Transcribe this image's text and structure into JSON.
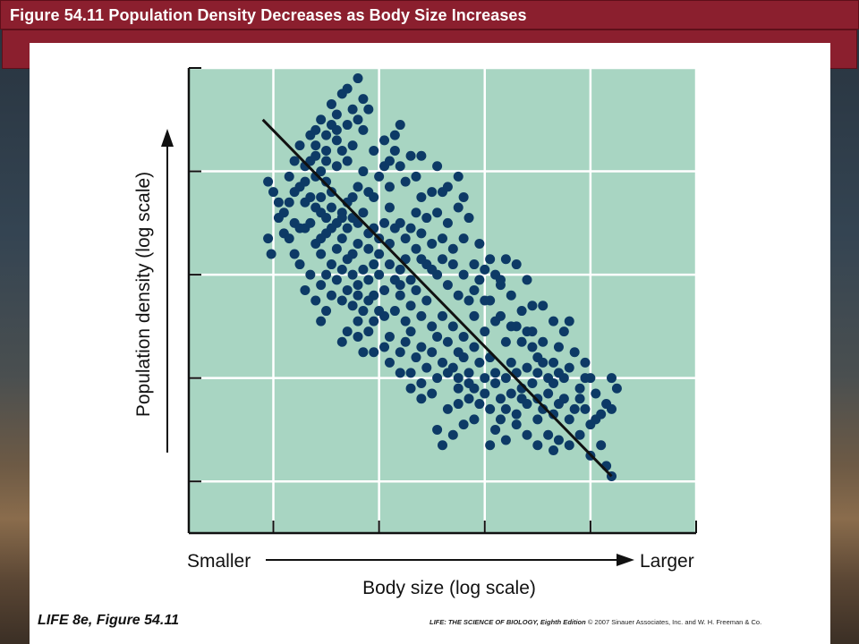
{
  "slide": {
    "title": "Figure 54.11 Population Density Decreases as Body Size Increases",
    "footer_left": "LIFE 8e, Figure 54.11",
    "footer_right_bold": "LIFE: THE SCIENCE OF BIOLOGY, Eighth Edition",
    "footer_right_rest": " © 2007 Sinauer Associates, Inc. and W. H. Freeman & Co."
  },
  "colors": {
    "title_bar": "#8b1f2e",
    "plot_background": "#a8d5c2",
    "point": "#0d3a66",
    "trend_line": "#111111"
  },
  "chart_data": {
    "type": "scatter",
    "title": "",
    "xlabel": "Body size (log scale)",
    "ylabel": "Population density (log scale)",
    "x_min_label": "Smaller",
    "x_max_label": "Larger",
    "log_x": true,
    "log_y": true,
    "xlim": [
      0,
      4.8
    ],
    "ylim": [
      0,
      4.5
    ],
    "grid": true,
    "grid_x": [
      0.8,
      1.8,
      2.8,
      3.8,
      4.8
    ],
    "grid_y": [
      0.5,
      1.5,
      2.5,
      3.5,
      4.5
    ],
    "trend_line": [
      [
        0.7,
        4.0
      ],
      [
        4.0,
        0.55
      ]
    ],
    "points": [
      [
        0.75,
        2.85
      ],
      [
        0.78,
        2.7
      ],
      [
        0.75,
        3.4
      ],
      [
        0.8,
        3.3
      ],
      [
        0.85,
        3.2
      ],
      [
        0.9,
        3.1
      ],
      [
        0.85,
        3.05
      ],
      [
        0.95,
        3.2
      ],
      [
        1.0,
        3.3
      ],
      [
        1.05,
        3.35
      ],
      [
        0.95,
        3.45
      ],
      [
        1.0,
        3.0
      ],
      [
        1.1,
        3.2
      ],
      [
        1.15,
        3.25
      ],
      [
        1.05,
        2.95
      ],
      [
        1.2,
        3.15
      ],
      [
        0.9,
        2.9
      ],
      [
        1.1,
        3.4
      ],
      [
        1.2,
        3.45
      ],
      [
        1.15,
        3.6
      ],
      [
        1.25,
        3.5
      ],
      [
        1.3,
        3.4
      ],
      [
        1.35,
        3.3
      ],
      [
        1.25,
        3.25
      ],
      [
        1.4,
        3.55
      ],
      [
        1.5,
        3.6
      ],
      [
        1.45,
        3.7
      ],
      [
        1.55,
        3.75
      ],
      [
        1.2,
        3.75
      ],
      [
        1.3,
        3.85
      ],
      [
        1.35,
        3.95
      ],
      [
        1.4,
        3.8
      ],
      [
        1.25,
        3.1
      ],
      [
        1.3,
        3.05
      ],
      [
        1.35,
        3.15
      ],
      [
        1.45,
        3.1
      ],
      [
        1.5,
        3.2
      ],
      [
        1.4,
        3.0
      ],
      [
        1.5,
        2.95
      ],
      [
        1.55,
        3.05
      ],
      [
        1.45,
        2.85
      ],
      [
        1.6,
        3.0
      ],
      [
        1.65,
        3.1
      ],
      [
        1.6,
        2.8
      ],
      [
        1.7,
        2.9
      ],
      [
        1.55,
        2.7
      ],
      [
        1.75,
        2.95
      ],
      [
        1.7,
        2.75
      ],
      [
        1.8,
        2.85
      ],
      [
        1.85,
        3.0
      ],
      [
        1.8,
        2.7
      ],
      [
        1.9,
        2.8
      ],
      [
        1.75,
        2.6
      ],
      [
        1.2,
        2.8
      ],
      [
        1.3,
        2.9
      ],
      [
        1.25,
        2.7
      ],
      [
        1.35,
        2.6
      ],
      [
        1.4,
        2.75
      ],
      [
        1.45,
        2.55
      ],
      [
        1.5,
        2.65
      ],
      [
        1.55,
        2.5
      ],
      [
        1.6,
        2.4
      ],
      [
        1.65,
        2.55
      ],
      [
        1.7,
        2.45
      ],
      [
        1.75,
        2.3
      ],
      [
        1.8,
        2.5
      ],
      [
        1.85,
        2.35
      ],
      [
        1.9,
        2.6
      ],
      [
        1.95,
        2.45
      ],
      [
        2.0,
        2.55
      ],
      [
        1.15,
        2.5
      ],
      [
        1.25,
        2.4
      ],
      [
        1.35,
        2.3
      ],
      [
        1.45,
        2.25
      ],
      [
        1.55,
        2.2
      ],
      [
        1.65,
        2.15
      ],
      [
        1.5,
        1.95
      ],
      [
        1.6,
        2.05
      ],
      [
        1.65,
        1.75
      ],
      [
        1.75,
        1.75
      ],
      [
        1.75,
        2.05
      ],
      [
        1.85,
        2.1
      ],
      [
        1.95,
        2.15
      ],
      [
        2.0,
        2.3
      ],
      [
        2.05,
        2.05
      ],
      [
        2.1,
        2.2
      ],
      [
        2.15,
        2.35
      ],
      [
        2.2,
        2.1
      ],
      [
        2.25,
        2.25
      ],
      [
        2.3,
        2.0
      ],
      [
        2.05,
        1.85
      ],
      [
        2.1,
        1.95
      ],
      [
        2.15,
        1.7
      ],
      [
        2.2,
        1.8
      ],
      [
        2.3,
        1.75
      ],
      [
        2.35,
        1.9
      ],
      [
        2.4,
        2.1
      ],
      [
        2.45,
        1.85
      ],
      [
        2.5,
        2.0
      ],
      [
        2.55,
        1.75
      ],
      [
        2.6,
        1.9
      ],
      [
        2.4,
        1.65
      ],
      [
        2.5,
        1.6
      ],
      [
        2.55,
        1.5
      ],
      [
        2.6,
        1.7
      ],
      [
        2.65,
        1.55
      ],
      [
        2.7,
        1.8
      ],
      [
        2.75,
        1.65
      ],
      [
        2.8,
        1.5
      ],
      [
        2.85,
        1.7
      ],
      [
        2.9,
        1.55
      ],
      [
        2.7,
        1.4
      ],
      [
        2.8,
        1.35
      ],
      [
        2.9,
        1.45
      ],
      [
        2.95,
        1.3
      ],
      [
        3.0,
        1.5
      ],
      [
        3.05,
        1.35
      ],
      [
        3.1,
        1.55
      ],
      [
        3.15,
        1.4
      ],
      [
        3.2,
        1.6
      ],
      [
        3.25,
        1.45
      ],
      [
        3.3,
        1.3
      ],
      [
        3.0,
        1.2
      ],
      [
        3.1,
        1.15
      ],
      [
        3.2,
        1.25
      ],
      [
        3.3,
        1.1
      ],
      [
        3.35,
        1.2
      ],
      [
        3.4,
        1.35
      ],
      [
        3.45,
        1.15
      ],
      [
        3.5,
        1.25
      ],
      [
        3.6,
        1.1
      ],
      [
        3.65,
        1.2
      ],
      [
        3.75,
        1.2
      ],
      [
        3.8,
        1.05
      ],
      [
        3.9,
        1.15
      ],
      [
        4.0,
        1.2
      ],
      [
        3.85,
        1.35
      ],
      [
        3.7,
        1.4
      ],
      [
        3.55,
        1.5
      ],
      [
        3.45,
        1.65
      ],
      [
        3.4,
        1.5
      ],
      [
        3.3,
        1.7
      ],
      [
        3.25,
        1.8
      ],
      [
        3.35,
        1.85
      ],
      [
        3.5,
        1.8
      ],
      [
        3.2,
        1.95
      ],
      [
        3.1,
        2.0
      ],
      [
        3.0,
        1.85
      ],
      [
        2.9,
        2.05
      ],
      [
        2.8,
        1.95
      ],
      [
        2.7,
        2.1
      ],
      [
        2.65,
        2.25
      ],
      [
        2.55,
        2.3
      ],
      [
        2.45,
        2.4
      ],
      [
        2.35,
        2.5
      ],
      [
        2.25,
        2.6
      ],
      [
        2.15,
        2.75
      ],
      [
        2.05,
        2.85
      ],
      [
        1.95,
        2.95
      ],
      [
        2.2,
        2.65
      ],
      [
        2.3,
        2.55
      ],
      [
        2.4,
        2.85
      ],
      [
        2.5,
        2.6
      ],
      [
        2.6,
        2.5
      ],
      [
        2.7,
        2.35
      ],
      [
        2.75,
        2.45
      ],
      [
        2.85,
        2.25
      ],
      [
        2.95,
        2.1
      ],
      [
        1.9,
        3.15
      ],
      [
        2.0,
        3.0
      ],
      [
        2.1,
        2.95
      ],
      [
        2.15,
        3.1
      ],
      [
        2.2,
        3.25
      ],
      [
        2.25,
        3.05
      ],
      [
        2.35,
        3.1
      ],
      [
        2.4,
        3.3
      ],
      [
        2.45,
        3.0
      ],
      [
        2.55,
        3.15
      ],
      [
        2.65,
        3.05
      ],
      [
        2.75,
        2.8
      ],
      [
        2.85,
        2.65
      ],
      [
        3.0,
        2.65
      ],
      [
        3.1,
        2.6
      ],
      [
        3.2,
        2.45
      ],
      [
        3.25,
        2.2
      ],
      [
        3.35,
        2.2
      ],
      [
        3.45,
        2.05
      ],
      [
        3.55,
        1.95
      ],
      [
        3.6,
        2.05
      ],
      [
        3.65,
        1.75
      ],
      [
        3.75,
        1.65
      ],
      [
        3.8,
        1.5
      ],
      [
        4.0,
        1.5
      ],
      [
        4.05,
        1.4
      ],
      [
        3.4,
        0.95
      ],
      [
        3.45,
        0.8
      ],
      [
        3.5,
        0.9
      ],
      [
        3.6,
        0.85
      ],
      [
        3.7,
        0.95
      ],
      [
        3.8,
        0.75
      ],
      [
        3.9,
        0.85
      ],
      [
        3.95,
        0.65
      ],
      [
        4.0,
        0.55
      ],
      [
        3.3,
        0.85
      ],
      [
        3.2,
        0.95
      ],
      [
        3.1,
        1.05
      ],
      [
        3.0,
        0.9
      ],
      [
        2.9,
        1.0
      ],
      [
        2.85,
        0.85
      ],
      [
        2.7,
        1.1
      ],
      [
        2.6,
        1.05
      ],
      [
        2.5,
        0.95
      ],
      [
        2.4,
        0.85
      ],
      [
        2.35,
        1.0
      ],
      [
        2.45,
        1.2
      ],
      [
        2.55,
        1.25
      ],
      [
        2.65,
        1.3
      ],
      [
        2.35,
        1.5
      ],
      [
        2.25,
        1.6
      ],
      [
        2.2,
        1.45
      ],
      [
        2.1,
        1.55
      ],
      [
        2.0,
        1.75
      ],
      [
        1.9,
        1.65
      ],
      [
        1.85,
        1.8
      ],
      [
        1.45,
        1.85
      ],
      [
        1.6,
        1.9
      ],
      [
        1.7,
        1.95
      ],
      [
        1.25,
        2.05
      ],
      [
        1.3,
        2.15
      ],
      [
        1.2,
        2.25
      ],
      [
        1.1,
        2.35
      ],
      [
        1.05,
        2.6
      ],
      [
        0.95,
        2.85
      ],
      [
        1.0,
        2.7
      ],
      [
        1.1,
        2.95
      ],
      [
        1.15,
        3.0
      ],
      [
        1.25,
        2.85
      ],
      [
        1.35,
        2.95
      ],
      [
        1.45,
        3.05
      ],
      [
        1.55,
        3.25
      ],
      [
        1.6,
        3.35
      ],
      [
        1.65,
        3.5
      ],
      [
        1.7,
        3.3
      ],
      [
        1.75,
        3.25
      ],
      [
        1.8,
        3.45
      ],
      [
        1.85,
        3.55
      ],
      [
        1.9,
        3.35
      ],
      [
        2.0,
        3.55
      ],
      [
        1.95,
        3.7
      ],
      [
        1.65,
        3.9
      ],
      [
        1.7,
        4.1
      ],
      [
        1.85,
        3.8
      ],
      [
        1.6,
        4.0
      ],
      [
        1.5,
        3.95
      ],
      [
        1.4,
        3.9
      ],
      [
        1.3,
        3.7
      ],
      [
        1.2,
        3.65
      ],
      [
        1.15,
        3.85
      ],
      [
        1.05,
        3.75
      ],
      [
        1.1,
        3.55
      ],
      [
        1.0,
        3.6
      ],
      [
        1.35,
        4.15
      ],
      [
        1.45,
        4.25
      ],
      [
        1.55,
        4.1
      ],
      [
        1.5,
        4.3
      ],
      [
        1.6,
        4.4
      ],
      [
        1.65,
        4.2
      ],
      [
        1.4,
        4.05
      ],
      [
        1.25,
        4.0
      ],
      [
        1.2,
        3.9
      ],
      [
        1.3,
        3.6
      ],
      [
        1.75,
        3.7
      ],
      [
        1.9,
        3.6
      ],
      [
        2.05,
        3.4
      ],
      [
        2.1,
        3.65
      ],
      [
        2.15,
        3.45
      ],
      [
        2.3,
        3.3
      ],
      [
        2.35,
        3.55
      ],
      [
        2.45,
        3.35
      ],
      [
        2.55,
        3.45
      ],
      [
        2.6,
        3.25
      ],
      [
        2.2,
        3.65
      ],
      [
        1.95,
        3.85
      ],
      [
        2.0,
        3.95
      ],
      [
        2.8,
        2.25
      ],
      [
        2.95,
        2.4
      ],
      [
        3.05,
        2.3
      ],
      [
        2.9,
        2.5
      ],
      [
        3.15,
        2.15
      ],
      [
        3.3,
        1.55
      ],
      [
        3.45,
        1.45
      ],
      [
        3.55,
        1.3
      ],
      [
        3.7,
        1.3
      ],
      [
        3.85,
        1.1
      ],
      [
        3.95,
        1.25
      ],
      [
        3.6,
        1.6
      ],
      [
        3.75,
        1.5
      ],
      [
        2.85,
        1.2
      ],
      [
        2.95,
        1.1
      ],
      [
        3.15,
        1.3
      ],
      [
        3.05,
        1.65
      ],
      [
        2.75,
        1.25
      ],
      [
        2.65,
        1.45
      ],
      [
        2.55,
        1.4
      ],
      [
        2.45,
        1.55
      ],
      [
        2.3,
        1.35
      ],
      [
        2.2,
        1.3
      ],
      [
        2.1,
        1.4
      ],
      [
        2.0,
        1.55
      ],
      [
        1.9,
        1.9
      ],
      [
        1.8,
        2.15
      ],
      [
        1.7,
        2.25
      ],
      [
        1.6,
        2.3
      ],
      [
        1.5,
        2.35
      ],
      [
        1.4,
        2.45
      ],
      [
        1.3,
        2.5
      ],
      [
        2.5,
        2.75
      ],
      [
        2.6,
        2.85
      ],
      [
        2.7,
        2.6
      ],
      [
        2.8,
        2.55
      ],
      [
        2.95,
        2.45
      ],
      [
        3.05,
        2.0
      ],
      [
        3.15,
        1.85
      ],
      [
        3.25,
        1.95
      ],
      [
        3.35,
        1.65
      ],
      [
        3.5,
        1.55
      ],
      [
        2.4,
        2.65
      ],
      [
        2.3,
        2.8
      ],
      [
        2.2,
        2.9
      ],
      [
        2.1,
        2.45
      ],
      [
        2.05,
        2.65
      ],
      [
        2.0,
        2.4
      ]
    ]
  }
}
